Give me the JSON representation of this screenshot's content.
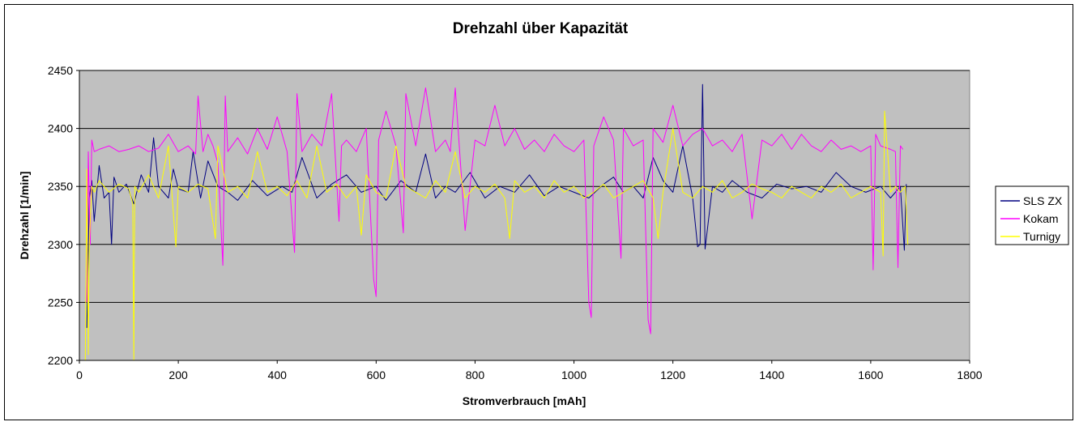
{
  "chart_data": {
    "type": "line",
    "title": "Drehzahl über Kapazität",
    "xlabel": "Stromverbrauch [mAh]",
    "ylabel": "Drehzahl [1/min]",
    "xlim": [
      0,
      1800
    ],
    "ylim": [
      2200,
      2450
    ],
    "x_ticks": [
      0,
      200,
      400,
      600,
      800,
      1000,
      1200,
      1400,
      1600,
      1800
    ],
    "y_ticks": [
      2200,
      2250,
      2300,
      2350,
      2400,
      2450
    ],
    "grid": "horizontal major gridlines",
    "plot_background": "#C0C0C0",
    "legend_position": "right",
    "series": [
      {
        "name": "SLS ZX",
        "color": "#000080",
        "x": [
          15,
          20,
          25,
          30,
          40,
          50,
          60,
          65,
          70,
          80,
          95,
          110,
          125,
          140,
          150,
          160,
          180,
          190,
          200,
          220,
          230,
          245,
          260,
          280,
          300,
          320,
          350,
          380,
          410,
          430,
          450,
          480,
          510,
          540,
          570,
          600,
          620,
          650,
          680,
          700,
          720,
          740,
          760,
          790,
          820,
          850,
          880,
          910,
          940,
          970,
          1000,
          1030,
          1060,
          1080,
          1100,
          1120,
          1140,
          1160,
          1180,
          1200,
          1220,
          1240,
          1250,
          1255,
          1260,
          1265,
          1280,
          1300,
          1320,
          1350,
          1380,
          1410,
          1440,
          1470,
          1500,
          1530,
          1560,
          1590,
          1620,
          1640,
          1660,
          1668,
          1672
        ],
        "values": [
          2228,
          2340,
          2355,
          2320,
          2368,
          2340,
          2345,
          2300,
          2358,
          2345,
          2352,
          2335,
          2360,
          2345,
          2392,
          2350,
          2340,
          2365,
          2348,
          2345,
          2380,
          2340,
          2372,
          2350,
          2345,
          2338,
          2355,
          2342,
          2350,
          2345,
          2375,
          2340,
          2352,
          2360,
          2345,
          2350,
          2338,
          2355,
          2345,
          2378,
          2340,
          2350,
          2345,
          2362,
          2340,
          2350,
          2345,
          2360,
          2342,
          2350,
          2345,
          2340,
          2352,
          2358,
          2345,
          2350,
          2340,
          2375,
          2355,
          2345,
          2385,
          2340,
          2298,
          2300,
          2438,
          2296,
          2350,
          2345,
          2355,
          2345,
          2340,
          2352,
          2348,
          2350,
          2345,
          2362,
          2350,
          2345,
          2350,
          2340,
          2350,
          2295,
          2352
        ]
      },
      {
        "name": "Kokam",
        "color": "#FF00FF",
        "x": [
          15,
          18,
          22,
          25,
          30,
          40,
          60,
          80,
          100,
          120,
          140,
          160,
          180,
          200,
          220,
          235,
          240,
          250,
          260,
          270,
          280,
          290,
          295,
          300,
          320,
          340,
          360,
          380,
          400,
          420,
          435,
          440,
          450,
          470,
          490,
          510,
          525,
          530,
          540,
          560,
          580,
          595,
          600,
          605,
          620,
          640,
          655,
          660,
          680,
          700,
          720,
          740,
          750,
          760,
          780,
          800,
          820,
          840,
          860,
          880,
          900,
          920,
          940,
          960,
          980,
          1000,
          1020,
          1030,
          1035,
          1040,
          1060,
          1080,
          1095,
          1100,
          1120,
          1140,
          1150,
          1155,
          1160,
          1180,
          1200,
          1220,
          1240,
          1260,
          1280,
          1300,
          1320,
          1340,
          1360,
          1380,
          1400,
          1420,
          1440,
          1460,
          1480,
          1500,
          1520,
          1540,
          1560,
          1580,
          1600,
          1605,
          1610,
          1620,
          1640,
          1650,
          1655,
          1660,
          1665
        ],
        "values": [
          2250,
          2380,
          2300,
          2390,
          2380,
          2382,
          2385,
          2380,
          2382,
          2385,
          2380,
          2383,
          2395,
          2380,
          2385,
          2378,
          2428,
          2380,
          2395,
          2385,
          2370,
          2282,
          2428,
          2380,
          2392,
          2378,
          2400,
          2382,
          2410,
          2380,
          2293,
          2430,
          2380,
          2395,
          2385,
          2430,
          2320,
          2385,
          2390,
          2380,
          2400,
          2270,
          2255,
          2390,
          2415,
          2385,
          2310,
          2430,
          2385,
          2435,
          2380,
          2390,
          2380,
          2435,
          2312,
          2390,
          2385,
          2420,
          2385,
          2400,
          2382,
          2390,
          2380,
          2395,
          2385,
          2380,
          2390,
          2250,
          2237,
          2385,
          2410,
          2390,
          2288,
          2400,
          2385,
          2390,
          2235,
          2223,
          2400,
          2388,
          2420,
          2385,
          2395,
          2400,
          2385,
          2390,
          2380,
          2395,
          2322,
          2390,
          2385,
          2395,
          2382,
          2395,
          2385,
          2380,
          2390,
          2382,
          2385,
          2380,
          2385,
          2278,
          2395,
          2385,
          2382,
          2380,
          2280,
          2385,
          2382
        ]
      },
      {
        "name": "Turnigy",
        "color": "#FFFF00",
        "x": [
          12,
          15,
          18,
          20,
          25,
          30,
          40,
          60,
          80,
          100,
          108,
          110,
          112,
          120,
          140,
          160,
          180,
          195,
          200,
          220,
          240,
          260,
          275,
          280,
          300,
          320,
          340,
          360,
          380,
          400,
          420,
          440,
          460,
          480,
          500,
          520,
          540,
          560,
          570,
          580,
          600,
          620,
          640,
          660,
          680,
          700,
          720,
          740,
          760,
          780,
          800,
          820,
          840,
          860,
          870,
          880,
          900,
          920,
          940,
          960,
          980,
          1000,
          1020,
          1040,
          1060,
          1080,
          1100,
          1120,
          1140,
          1160,
          1170,
          1180,
          1200,
          1220,
          1240,
          1260,
          1280,
          1300,
          1320,
          1340,
          1360,
          1380,
          1400,
          1420,
          1440,
          1460,
          1480,
          1500,
          1520,
          1540,
          1560,
          1580,
          1600,
          1620,
          1625,
          1628,
          1640,
          1650,
          1660,
          1670,
          1675
        ],
        "values": [
          2200,
          2365,
          2205,
          2300,
          2350,
          2345,
          2355,
          2345,
          2352,
          2348,
          2335,
          2200,
          2350,
          2345,
          2360,
          2340,
          2385,
          2298,
          2350,
          2345,
          2352,
          2348,
          2305,
          2385,
          2345,
          2350,
          2340,
          2380,
          2345,
          2350,
          2342,
          2355,
          2340,
          2385,
          2345,
          2352,
          2340,
          2350,
          2308,
          2360,
          2345,
          2340,
          2385,
          2350,
          2345,
          2340,
          2355,
          2345,
          2380,
          2340,
          2350,
          2345,
          2352,
          2340,
          2305,
          2355,
          2345,
          2350,
          2340,
          2355,
          2345,
          2350,
          2340,
          2345,
          2352,
          2340,
          2345,
          2350,
          2355,
          2340,
          2305,
          2345,
          2400,
          2345,
          2340,
          2350,
          2345,
          2355,
          2340,
          2345,
          2352,
          2348,
          2345,
          2340,
          2350,
          2345,
          2340,
          2350,
          2345,
          2352,
          2340,
          2345,
          2350,
          2345,
          2290,
          2415,
          2345,
          2350,
          2345,
          2350,
          2300
        ]
      }
    ]
  }
}
